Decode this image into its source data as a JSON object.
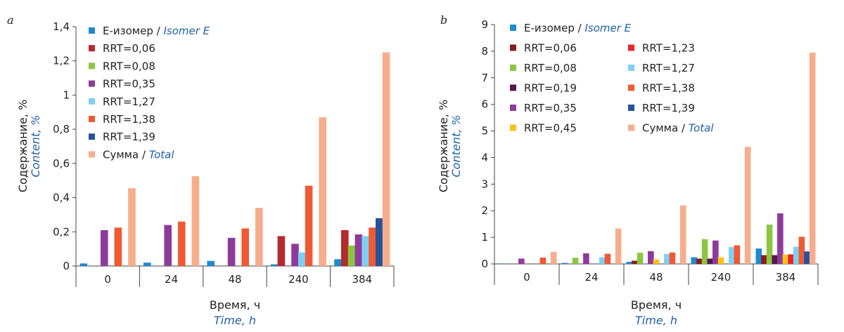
{
  "chart_data": [
    {
      "type": "bar",
      "panel_label": "a",
      "xlabel": "Время, ч",
      "xlabel_en": "Time, h",
      "ylabel": "Содержание, %",
      "ylabel_en": "Content, %",
      "ylim": [
        0,
        1.4
      ],
      "yticks": [
        0,
        0.2,
        0.4,
        0.6,
        0.8,
        1,
        1.2,
        1.4
      ],
      "ytick_labels": [
        "0",
        "0,2",
        "0,4",
        "0,6",
        "0,8",
        "1",
        "1,2",
        "1,4"
      ],
      "categories": [
        "0",
        "24",
        "48",
        "240",
        "384"
      ],
      "legend_placement": "top-left",
      "series": [
        {
          "name": "Е-изомер",
          "name_en": "Isomer E",
          "color": "#1f8ad1",
          "values": [
            0.015,
            0.02,
            0.03,
            0.01,
            0.04
          ]
        },
        {
          "name": "RRT=0,06",
          "color": "#b52a2d",
          "values": [
            0,
            0,
            0,
            0.175,
            0.21
          ]
        },
        {
          "name": "RRT=0,08",
          "color": "#8cc63f",
          "values": [
            0,
            0,
            0,
            0,
            0.12
          ]
        },
        {
          "name": "RRT=0,35",
          "color": "#8e3a9c",
          "values": [
            0.21,
            0.24,
            0.165,
            0.13,
            0.185
          ]
        },
        {
          "name": "RRT=1,27",
          "color": "#7dd0f3",
          "values": [
            0,
            0,
            0,
            0.08,
            0.175
          ]
        },
        {
          "name": "RRT=1,38",
          "color": "#ef5a34",
          "values": [
            0.225,
            0.26,
            0.22,
            0.47,
            0.225
          ]
        },
        {
          "name": "RRT=1,39",
          "color": "#24529b",
          "values": [
            0,
            0,
            0,
            0,
            0.28
          ]
        },
        {
          "name": "Сумма",
          "name_en": "Total",
          "color": "#f6ad8c",
          "values": [
            0.455,
            0.525,
            0.34,
            0.87,
            1.25
          ]
        }
      ]
    },
    {
      "type": "bar",
      "panel_label": "b",
      "xlabel": "Время, ч",
      "xlabel_en": "Time, h",
      "ylabel": "Содержание, %",
      "ylabel_en": "Content, %",
      "ylim": [
        0,
        9
      ],
      "yticks": [
        0,
        1,
        2,
        3,
        4,
        5,
        6,
        7,
        8,
        9
      ],
      "ytick_labels": [
        "0",
        "1",
        "2",
        "3",
        "4",
        "5",
        "6",
        "7",
        "8",
        "9"
      ],
      "categories": [
        "0",
        "24",
        "48",
        "240",
        "384"
      ],
      "legend_placement": "top-left",
      "series": [
        {
          "name": "Е-изомер",
          "name_en": "Isomer E",
          "color": "#1f8ad1",
          "values": [
            0.02,
            0.04,
            0.08,
            0.25,
            0.58
          ]
        },
        {
          "name": "RRT=0,06",
          "color": "#8b1a1c",
          "values": [
            0,
            0,
            0.12,
            0.2,
            0.33
          ]
        },
        {
          "name": "RRT=0,08",
          "color": "#8cc63f",
          "values": [
            0,
            0.23,
            0.42,
            0.93,
            1.48
          ]
        },
        {
          "name": "RRT=0,19",
          "color": "#55174d",
          "values": [
            0,
            0,
            0,
            0.2,
            0.33
          ]
        },
        {
          "name": "RRT=0,35",
          "color": "#8e3a9c",
          "values": [
            0.2,
            0.4,
            0.48,
            0.88,
            1.9
          ]
        },
        {
          "name": "RRT=0,45",
          "color": "#f7c31b",
          "values": [
            0,
            0,
            0.17,
            0.25,
            0.35
          ]
        },
        {
          "name": "RRT=1,23",
          "color": "#e8252b",
          "values": [
            0,
            0,
            0,
            0,
            0.36
          ]
        },
        {
          "name": "RRT=1,27",
          "color": "#7dd0f3",
          "values": [
            0,
            0.25,
            0.37,
            0.63,
            0.65
          ]
        },
        {
          "name": "RRT=1,38",
          "color": "#ef5a34",
          "values": [
            0.24,
            0.38,
            0.43,
            0.7,
            1.02
          ]
        },
        {
          "name": "RRT=1,39",
          "color": "#24529b",
          "values": [
            0,
            0,
            0,
            0,
            0.47
          ]
        },
        {
          "name": "Сумма",
          "name_en": "Total",
          "color": "#f6ad8c",
          "values": [
            0.45,
            1.33,
            2.2,
            4.4,
            7.95
          ]
        }
      ]
    }
  ]
}
